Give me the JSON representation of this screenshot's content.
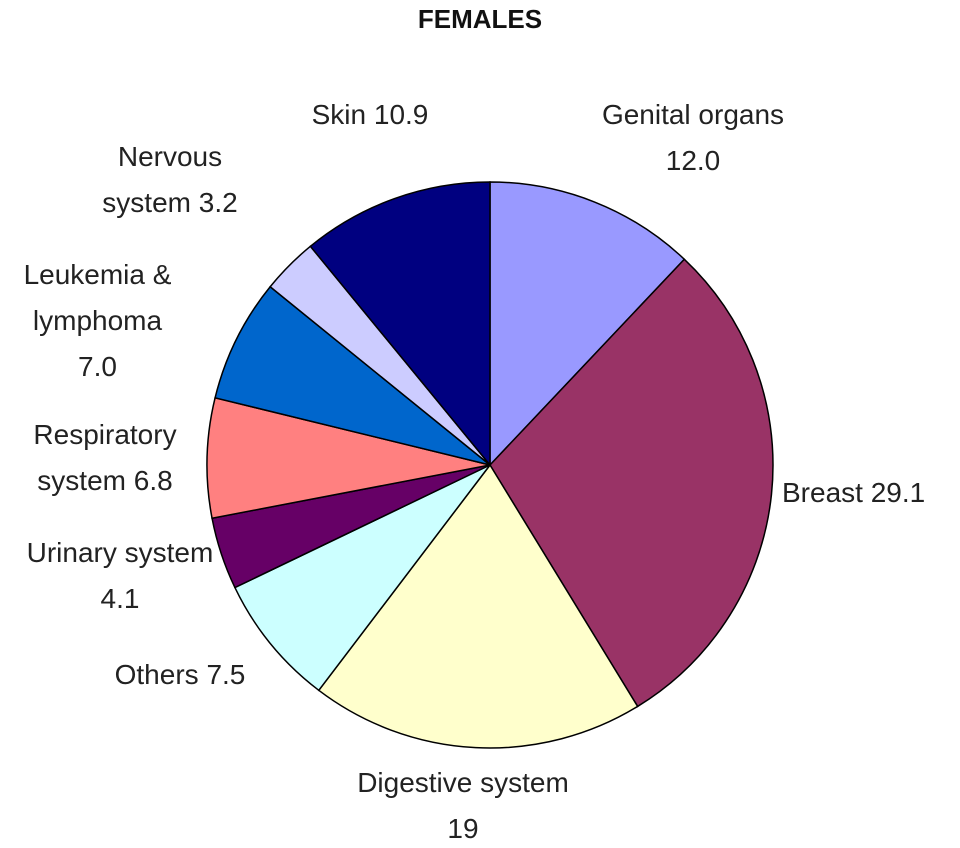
{
  "chart_data": {
    "type": "pie",
    "title": "FEMALES",
    "categories": [
      "Genital organs",
      "Breast",
      "Digestive system",
      "Others",
      "Urinary system",
      "Respiratory system",
      "Leukemia & lymphoma",
      "Nervous system",
      "Skin"
    ],
    "values": [
      12.0,
      29.1,
      19,
      7.5,
      4.1,
      6.8,
      7.0,
      3.2,
      10.9
    ],
    "value_labels": [
      "12.0",
      "29.1",
      "19",
      "7.5",
      "4.1",
      "6.8",
      "7.0",
      "3.2",
      "10.9"
    ],
    "colors": [
      "#9999ff",
      "#993366",
      "#ffffcc",
      "#ccffff",
      "#660066",
      "#ff8080",
      "#0066cc",
      "#ccccff",
      "#000080"
    ]
  }
}
